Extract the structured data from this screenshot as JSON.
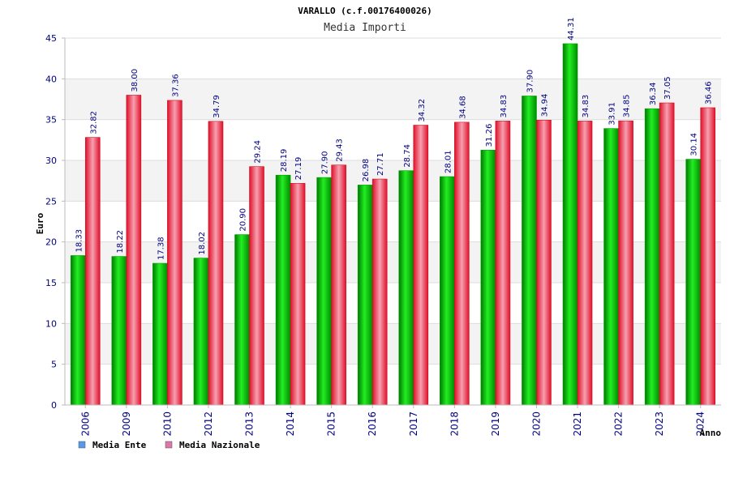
{
  "chart_data": {
    "type": "bar",
    "title": "VARALLO (c.f.00176400026)",
    "subtitle": "Media Importi",
    "ylabel": "Euro",
    "xlabel": "Anno",
    "ylim": [
      0,
      45
    ],
    "yticks": [
      0,
      5,
      10,
      15,
      20,
      25,
      30,
      35,
      40,
      45
    ],
    "grid": true,
    "legend": "bottom-left",
    "categories": [
      "2006",
      "2009",
      "2010",
      "2012",
      "2013",
      "2014",
      "2015",
      "2016",
      "2017",
      "2018",
      "2019",
      "2020",
      "2021",
      "2022",
      "2023",
      "2024"
    ],
    "series": [
      {
        "name": "Media Ente",
        "color": "#00c000",
        "legend_color": "#5599ee",
        "values": [
          18.33,
          18.22,
          17.38,
          18.02,
          20.9,
          28.19,
          27.9,
          26.98,
          28.74,
          28.01,
          31.26,
          37.9,
          44.31,
          33.91,
          36.34,
          30.14
        ],
        "labels": [
          "18.33",
          "18.22",
          "17.38",
          "18.02",
          "20.90",
          "28.19",
          "27.90",
          "26.98",
          "28.74",
          "28.01",
          "31.26",
          "37.90",
          "44.31",
          "33.91",
          "36.34",
          "30.14"
        ]
      },
      {
        "name": "Media Nazionale",
        "color": "#ee1c2e",
        "legend_color": "#dd77aa",
        "values": [
          32.82,
          38.0,
          37.36,
          34.79,
          29.24,
          27.19,
          29.43,
          27.71,
          34.32,
          34.68,
          34.83,
          34.94,
          34.83,
          34.85,
          37.05,
          36.46
        ],
        "labels": [
          "32.82",
          "38.00",
          "37.36",
          "34.79",
          "29.24",
          "27.19",
          "29.43",
          "27.71",
          "34.32",
          "34.68",
          "34.83",
          "34.94",
          "34.83",
          "34.85",
          "37.05",
          "36.46"
        ]
      }
    ]
  }
}
